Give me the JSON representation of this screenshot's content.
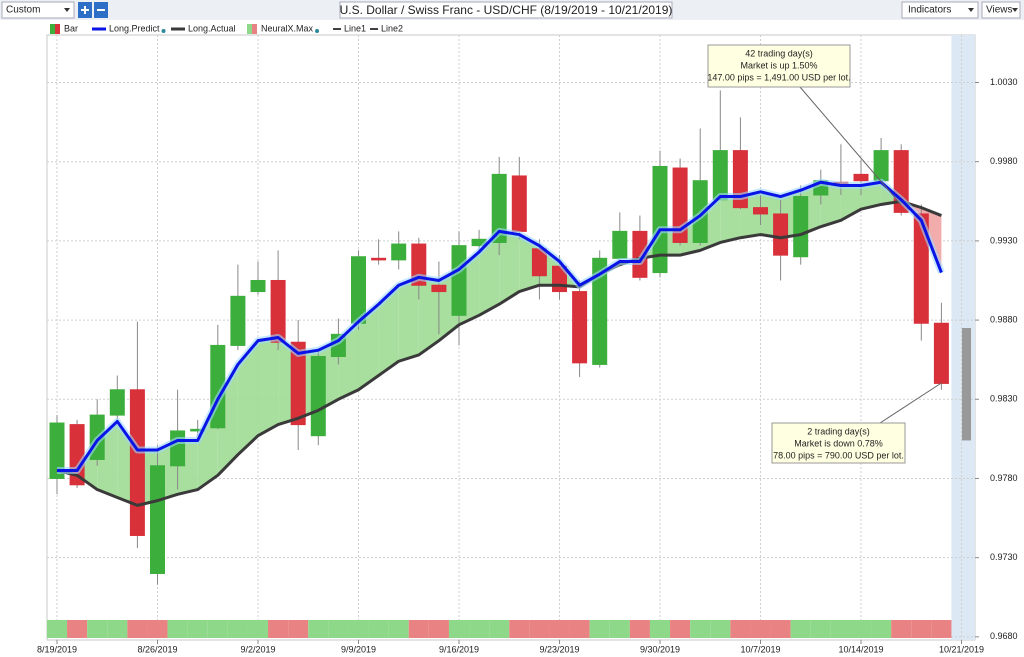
{
  "toolbar": {
    "preset": "Custom",
    "indicators": "Indicators",
    "views": "Views"
  },
  "chart_data": {
    "type": "candlestick",
    "title": "U.S. Dollar / Swiss Franc - USD/CHF (8/19/2019 - 10/21/2019)",
    "categories": [
      "8/19/2019",
      null,
      null,
      null,
      null,
      "8/26/2019",
      null,
      null,
      null,
      null,
      "9/2/2019",
      null,
      null,
      null,
      null,
      "9/9/2019",
      null,
      null,
      null,
      null,
      "9/16/2019",
      null,
      null,
      null,
      null,
      "9/23/2019",
      null,
      null,
      null,
      null,
      "9/30/2019",
      null,
      null,
      null,
      null,
      "10/7/2019",
      null,
      null,
      null,
      null,
      "10/14/2019",
      null,
      null,
      null,
      null,
      "10/21/2019"
    ],
    "ylim": [
      0.9678,
      1.006
    ],
    "yticks": [
      {
        "value": 0.968,
        "label": "0.9680"
      },
      {
        "value": 0.973,
        "label": "0.9730"
      },
      {
        "value": 0.978,
        "label": "0.9780"
      },
      {
        "value": 0.983,
        "label": "0.9830"
      },
      {
        "value": 0.988,
        "label": "0.9880"
      },
      {
        "value": 0.993,
        "label": "0.9930"
      },
      {
        "value": 0.998,
        "label": "0.9980"
      },
      {
        "value": 1.003,
        "label": "1.0030"
      }
    ],
    "grid": true,
    "series": [
      {
        "name": "Bar",
        "up_color": "#3cae3c",
        "down_color": "#d8313a",
        "open": [
          0.978,
          0.9814,
          0.9792,
          0.982,
          0.9836,
          0.972,
          0.9788,
          0.981,
          0.9812,
          0.9864,
          0.9898,
          0.9905,
          0.9866,
          0.9807,
          0.9857,
          0.9878,
          0.9919,
          0.9918,
          0.9928,
          0.9902,
          0.9883,
          0.9927,
          0.9929,
          0.9971,
          0.9925,
          0.9914,
          0.9898,
          0.9852,
          0.9919,
          0.9936,
          0.991,
          0.9976,
          0.9929,
          0.9956,
          0.9987,
          0.9951,
          0.9947,
          0.992,
          0.9959,
          0.9967,
          0.9972,
          0.9968,
          0.9987,
          0.9947,
          0.9878,
          null
        ],
        "high": [
          0.982,
          0.9817,
          0.983,
          0.9845,
          0.9879,
          0.9801,
          0.9836,
          0.9817,
          0.9877,
          0.9915,
          0.9917,
          0.9924,
          0.988,
          0.9861,
          0.9881,
          0.9924,
          0.9931,
          0.9936,
          0.9932,
          0.9917,
          0.9936,
          0.9937,
          0.9983,
          0.9983,
          0.9931,
          0.9921,
          0.9905,
          0.9924,
          0.9948,
          0.9946,
          0.9987,
          0.9982,
          1.0001,
          1.0025,
          1.0008,
          0.9959,
          0.9956,
          0.9965,
          0.9975,
          0.9991,
          0.9981,
          0.9995,
          0.9991,
          0.9953,
          0.9891,
          null
        ],
        "low": [
          0.977,
          0.9774,
          0.9788,
          0.9817,
          0.9736,
          0.9713,
          0.9773,
          0.9807,
          0.9811,
          0.9861,
          0.9896,
          0.9861,
          0.9798,
          0.9801,
          0.9852,
          0.9874,
          0.9915,
          0.9912,
          0.9893,
          0.9871,
          0.9864,
          0.9923,
          0.9921,
          0.9931,
          0.9893,
          0.9893,
          0.9844,
          0.985,
          0.9915,
          0.9905,
          0.9907,
          0.9927,
          0.9927,
          0.9956,
          0.995,
          0.994,
          0.9905,
          0.9915,
          0.9953,
          0.9959,
          0.9959,
          0.9965,
          0.9946,
          0.9867,
          0.9836,
          null
        ],
        "close": [
          0.9815,
          0.9776,
          0.982,
          0.9836,
          0.9744,
          0.9788,
          0.981,
          0.9811,
          0.9864,
          0.9895,
          0.9905,
          0.9866,
          0.9814,
          0.9857,
          0.9871,
          0.992,
          0.9918,
          0.9928,
          0.9902,
          0.9898,
          0.9927,
          0.9931,
          0.9972,
          0.9936,
          0.9908,
          0.9898,
          0.9853,
          0.9919,
          0.9936,
          0.9907,
          0.9977,
          0.9929,
          0.9968,
          0.9987,
          0.9951,
          0.9947,
          0.9921,
          0.9958,
          0.9968,
          0.9965,
          0.9968,
          0.9987,
          0.9948,
          0.9878,
          0.984,
          null
        ]
      },
      {
        "name": "Long.Predict",
        "color": "#0a14e6",
        "values": [
          0.9785,
          0.9785,
          0.9804,
          0.9816,
          0.9798,
          0.9798,
          0.9804,
          0.9804,
          0.983,
          0.9852,
          0.9867,
          0.9869,
          0.9859,
          0.9861,
          0.9867,
          0.9879,
          0.989,
          0.9902,
          0.9907,
          0.9905,
          0.9912,
          0.9923,
          0.9936,
          0.9934,
          0.9927,
          0.9917,
          0.9902,
          0.9909,
          0.9917,
          0.9917,
          0.9937,
          0.9937,
          0.9946,
          0.9958,
          0.9958,
          0.9961,
          0.9958,
          0.9962,
          0.9967,
          0.9965,
          0.9965,
          0.9967,
          0.9956,
          0.9943,
          0.991,
          null
        ]
      },
      {
        "name": "Long.Actual",
        "color": "#3a3a3a",
        "values": [
          0.9785,
          0.9782,
          0.9773,
          0.9768,
          0.9763,
          0.9766,
          0.977,
          0.9773,
          0.9782,
          0.9795,
          0.9807,
          0.9814,
          0.9818,
          0.9823,
          0.983,
          0.9836,
          0.9845,
          0.9854,
          0.9858,
          0.9867,
          0.9877,
          0.9883,
          0.989,
          0.9898,
          0.9902,
          0.9902,
          0.9901,
          0.9909,
          0.9915,
          0.9919,
          0.9921,
          0.9921,
          0.9924,
          0.9929,
          0.9932,
          0.9934,
          0.9932,
          0.9934,
          0.9939,
          0.9943,
          0.995,
          0.9953,
          0.9955,
          0.9951,
          0.9946,
          null
        ]
      },
      {
        "name": "NeuralX.Max",
        "up_color": "#8ed88a",
        "down_color": "#e98282",
        "colors": [
          "#8ed88a",
          "#e98282",
          "#8ed88a",
          "#8ed88a",
          "#e98282",
          "#e98282",
          "#8ed88a",
          "#8ed88a",
          "#8ed88a",
          "#8ed88a",
          "#8ed88a",
          "#e98282",
          "#e98282",
          "#8ed88a",
          "#8ed88a",
          "#8ed88a",
          "#8ed88a",
          "#8ed88a",
          "#e98282",
          "#e98282",
          "#8ed88a",
          "#8ed88a",
          "#8ed88a",
          "#e98282",
          "#e98282",
          "#e98282",
          "#e98282",
          "#8ed88a",
          "#8ed88a",
          "#e98282",
          "#8ed88a",
          "#e98282",
          "#8ed88a",
          "#8ed88a",
          "#e98282",
          "#e98282",
          "#e98282",
          "#8ed88a",
          "#8ed88a",
          "#8ed88a",
          "#8ed88a",
          "#8ed88a",
          "#e98282",
          "#e98282",
          "#e98282",
          null
        ]
      },
      {
        "name": "Line1",
        "color": "#000000"
      },
      {
        "name": "Line2",
        "color": "#000000"
      }
    ],
    "fill_up_color": "#9edb94",
    "fill_down_color": "#f1a3a3",
    "projection": {
      "color": "#999999",
      "low": 0.9804,
      "high": 0.9875
    },
    "annotations": [
      {
        "lines": [
          "42 trading day(s)",
          "Market is up 1.50%",
          "147.00 pips = 1,491.00 USD per lot."
        ]
      },
      {
        "lines": [
          "2 trading day(s)",
          "Market is down 0.78%",
          "78.00 pips = 790.00 USD per lot."
        ]
      }
    ]
  }
}
